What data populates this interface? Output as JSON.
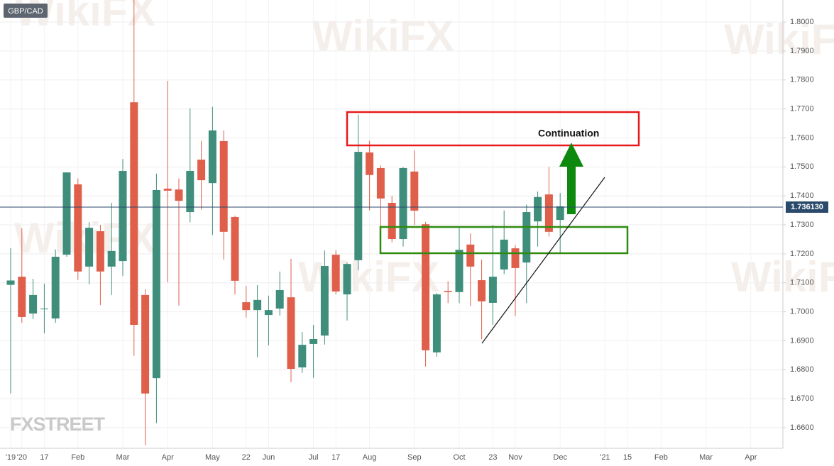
{
  "chart_data": {
    "type": "candlestick",
    "title": "GBP/CAD",
    "annotation": "Continuation",
    "logo": "FXSTREET",
    "watermark": "WikiFX",
    "categories": [
      "'19",
      "'20",
      null,
      "17",
      null,
      null,
      "Feb",
      null,
      null,
      null,
      "Mar",
      null,
      null,
      null,
      "Apr",
      null,
      null,
      null,
      "May",
      null,
      null,
      "22",
      null,
      "Jun",
      null,
      null,
      null,
      "Jul",
      null,
      "17",
      null,
      null,
      "Aug",
      null,
      null,
      null,
      "Sep",
      null,
      null,
      null,
      "Oct",
      null,
      null,
      "23",
      null,
      "Nov",
      null,
      null,
      null,
      "Dec",
      null,
      null,
      null,
      "'21",
      null,
      "15",
      null,
      null,
      "Feb",
      null,
      null,
      null,
      "Mar",
      null,
      null,
      null,
      "Apr"
    ],
    "open": [
      1.7093,
      1.7121,
      1.6994,
      1.7009,
      1.6977,
      1.7197,
      1.744,
      1.7156,
      1.7278,
      1.7156,
      1.7175,
      1.7723,
      1.7058,
      1.6771,
      1.7425,
      1.7422,
      1.7344,
      1.7525,
      1.7444,
      1.7589,
      1.7327,
      1.7033,
      1.7006,
      1.6989,
      1.7011,
      1.705,
      1.6808,
      1.6889,
      1.6918,
      1.7197,
      1.706,
      1.7178,
      1.755,
      1.7496,
      1.7376,
      1.7251,
      1.7484,
      1.7302,
      1.686,
      1.7072,
      1.7068,
      1.7232,
      1.7109,
      1.7031,
      1.7146,
      1.7219,
      1.717,
      1.7312,
      1.7405,
      1.7317,
      null,
      null,
      null,
      null,
      null,
      null,
      null,
      null,
      null,
      null,
      null,
      null,
      null,
      null,
      null,
      null,
      null
    ],
    "high": [
      1.7219,
      1.7288,
      1.7114,
      1.7097,
      1.7215,
      1.7481,
      1.746,
      1.731,
      1.73,
      1.7376,
      1.7527,
      1.8076,
      1.7078,
      1.7477,
      1.7797,
      1.746,
      1.7702,
      1.759,
      1.7707,
      1.7626,
      1.7332,
      1.709,
      1.7092,
      1.7056,
      1.7139,
      1.7183,
      1.693,
      1.6955,
      1.7212,
      1.7212,
      1.717,
      1.768,
      1.759,
      1.7505,
      1.74,
      1.75,
      1.7557,
      1.731,
      1.7065,
      1.7105,
      1.729,
      1.727,
      1.718,
      1.73,
      1.735,
      1.723,
      1.737,
      1.7415,
      1.75,
      1.741,
      null,
      null,
      null,
      null,
      null,
      null,
      null,
      null,
      null,
      null,
      null,
      null,
      null,
      null,
      null,
      null,
      null
    ],
    "low": [
      1.6718,
      1.6962,
      1.6975,
      1.6926,
      1.6962,
      1.719,
      1.711,
      1.7095,
      1.7023,
      1.7058,
      1.7124,
      1.6848,
      1.654,
      1.6616,
      1.7102,
      1.7022,
      1.7309,
      1.7352,
      1.7265,
      1.718,
      1.706,
      1.698,
      1.6843,
      1.6884,
      1.6987,
      1.6757,
      1.6789,
      1.6772,
      1.6887,
      1.706,
      1.697,
      1.7143,
      1.735,
      1.7293,
      1.724,
      1.7225,
      1.73,
      1.6811,
      1.6845,
      1.703,
      1.703,
      1.702,
      1.6905,
      1.6955,
      1.713,
      1.6985,
      1.703,
      1.7225,
      1.726,
      1.72,
      null,
      null,
      null,
      null,
      null,
      null,
      null,
      null,
      null,
      null,
      null,
      null,
      null,
      null,
      null,
      null,
      null
    ],
    "close": [
      1.7108,
      1.6982,
      1.7058,
      1.7011,
      1.719,
      1.7481,
      1.7139,
      1.729,
      1.7139,
      1.721,
      1.7486,
      1.6955,
      1.6718,
      1.742,
      1.7418,
      1.7383,
      1.7486,
      1.7454,
      1.7626,
      1.7276,
      1.7107,
      1.7006,
      1.7041,
      1.7006,
      1.7075,
      1.6803,
      1.6886,
      1.6906,
      1.7158,
      1.707,
      1.7165,
      1.7552,
      1.7472,
      1.7391,
      1.7251,
      1.7496,
      1.7349,
      1.6867,
      1.706,
      1.7068,
      1.7214,
      1.7156,
      1.7036,
      1.7121,
      1.7249,
      1.7151,
      1.7344,
      1.7396,
      1.7276,
      1.7364,
      null,
      null,
      null,
      null,
      null,
      null,
      null,
      null,
      null,
      null,
      null,
      null,
      null,
      null,
      null,
      null,
      null
    ],
    "up_color": "#3e8e7b",
    "down_color": "#df5f4b",
    "last_price": {
      "value": 1.73613,
      "label": "1.736130"
    },
    "ylim": [
      1.6529,
      1.8076
    ],
    "yticks": [
      {
        "value": 1.66,
        "label": "1.6600"
      },
      {
        "value": 1.67,
        "label": "1.6700"
      },
      {
        "value": 1.68,
        "label": "1.6800"
      },
      {
        "value": 1.69,
        "label": "1.6900"
      },
      {
        "value": 1.7,
        "label": "1.7000"
      },
      {
        "value": 1.71,
        "label": "1.7100"
      },
      {
        "value": 1.72,
        "label": "1.7200"
      },
      {
        "value": 1.73,
        "label": "1.7300"
      },
      {
        "value": 1.74,
        "label": "1.7400"
      },
      {
        "value": 1.75,
        "label": "1.7500"
      },
      {
        "value": 1.76,
        "label": "1.7600"
      },
      {
        "value": 1.77,
        "label": "1.7700"
      },
      {
        "value": 1.78,
        "label": "1.7800"
      },
      {
        "value": 1.79,
        "label": "1.7900"
      },
      {
        "value": 1.8,
        "label": "1.8000"
      }
    ],
    "grid": true
  }
}
